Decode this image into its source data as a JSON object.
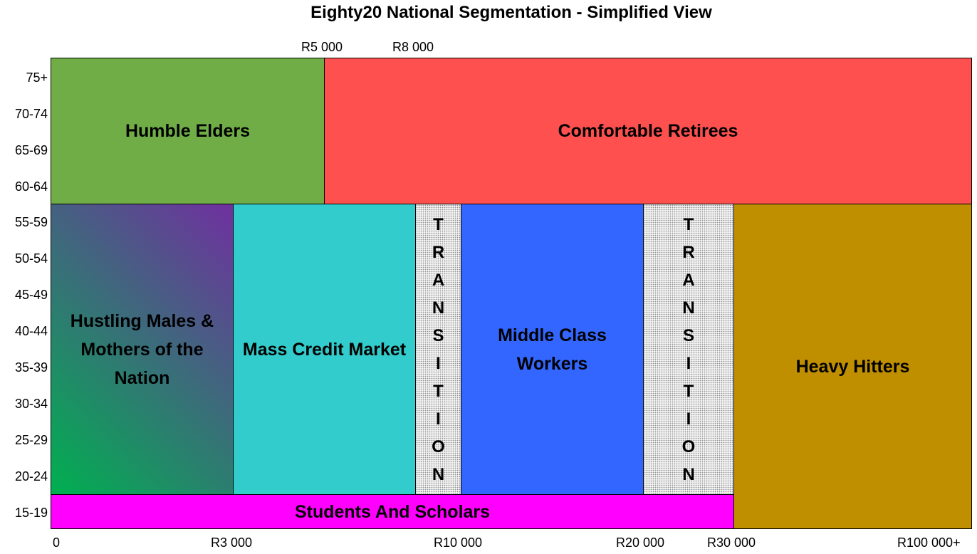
{
  "title": "Eighty20 National Segmentation - Simplified View",
  "y_ticks": [
    "75+",
    "70-74",
    "65-69",
    "60-64",
    "55-59",
    "50-54",
    "45-49",
    "40-44",
    "35-39",
    "30-34",
    "25-29",
    "20-24",
    "15-19"
  ],
  "x_ticks_top": [
    "R5 000",
    "R8 000"
  ],
  "x_ticks_bottom": [
    "0",
    "R3 000",
    "R10 000",
    "R20 000",
    "R30 000",
    "R100 000+"
  ],
  "segments": {
    "humble_elders": {
      "label": "Humble Elders",
      "color": "#70AD47"
    },
    "comfortable_retirees": {
      "label": "Comfortable Retirees",
      "color": "#FF5050"
    },
    "hustling_males": {
      "lines": [
        "Hustling Males &",
        "Mothers of the",
        "Nation"
      ],
      "gradient_from": "#00B050",
      "gradient_to": "#7030A0"
    },
    "mass_credit_market": {
      "label": "Mass Credit Market",
      "color": "#33CCCC"
    },
    "transition_1": {
      "letters": [
        "T",
        "R",
        "A",
        "N",
        "S",
        "I",
        "T",
        "I",
        "O",
        "N"
      ]
    },
    "middle_class_workers": {
      "lines": [
        "Middle Class",
        "Workers"
      ],
      "color": "#3366FF"
    },
    "transition_2": {
      "letters": [
        "T",
        "R",
        "A",
        "N",
        "S",
        "I",
        "T",
        "I",
        "O",
        "N"
      ]
    },
    "heavy_hitters": {
      "label": "Heavy Hitters",
      "color": "#BF8F00"
    },
    "students_and_scholars": {
      "label": "Students And Scholars",
      "color": "#FF00FF"
    }
  }
}
